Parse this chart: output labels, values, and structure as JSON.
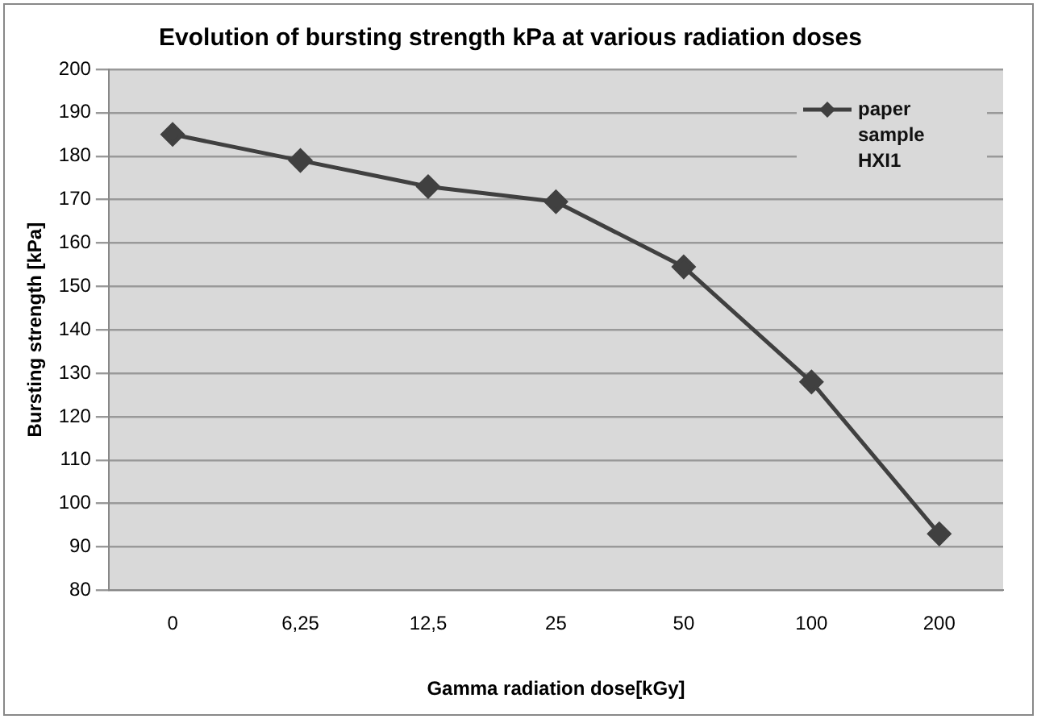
{
  "chart_data": {
    "type": "line",
    "title": "Evolution of bursting strength kPa at various radiation doses",
    "xlabel": "Gamma radiation dose[kGy]",
    "ylabel": "Bursting strength [kPa]",
    "categories": [
      "0",
      "6,25",
      "12,5",
      "25",
      "50",
      "100",
      "200"
    ],
    "series": [
      {
        "name": "paper sample HXI1",
        "color": "#404040",
        "values": [
          185,
          179,
          173,
          169.5,
          154.5,
          128,
          93
        ]
      }
    ],
    "ylim": [
      80,
      200
    ],
    "yticks": [
      80,
      90,
      100,
      110,
      120,
      130,
      140,
      150,
      160,
      170,
      180,
      190,
      200
    ],
    "grid": "y",
    "legend": "top right",
    "marker": "diamond",
    "line_style": "solid"
  }
}
